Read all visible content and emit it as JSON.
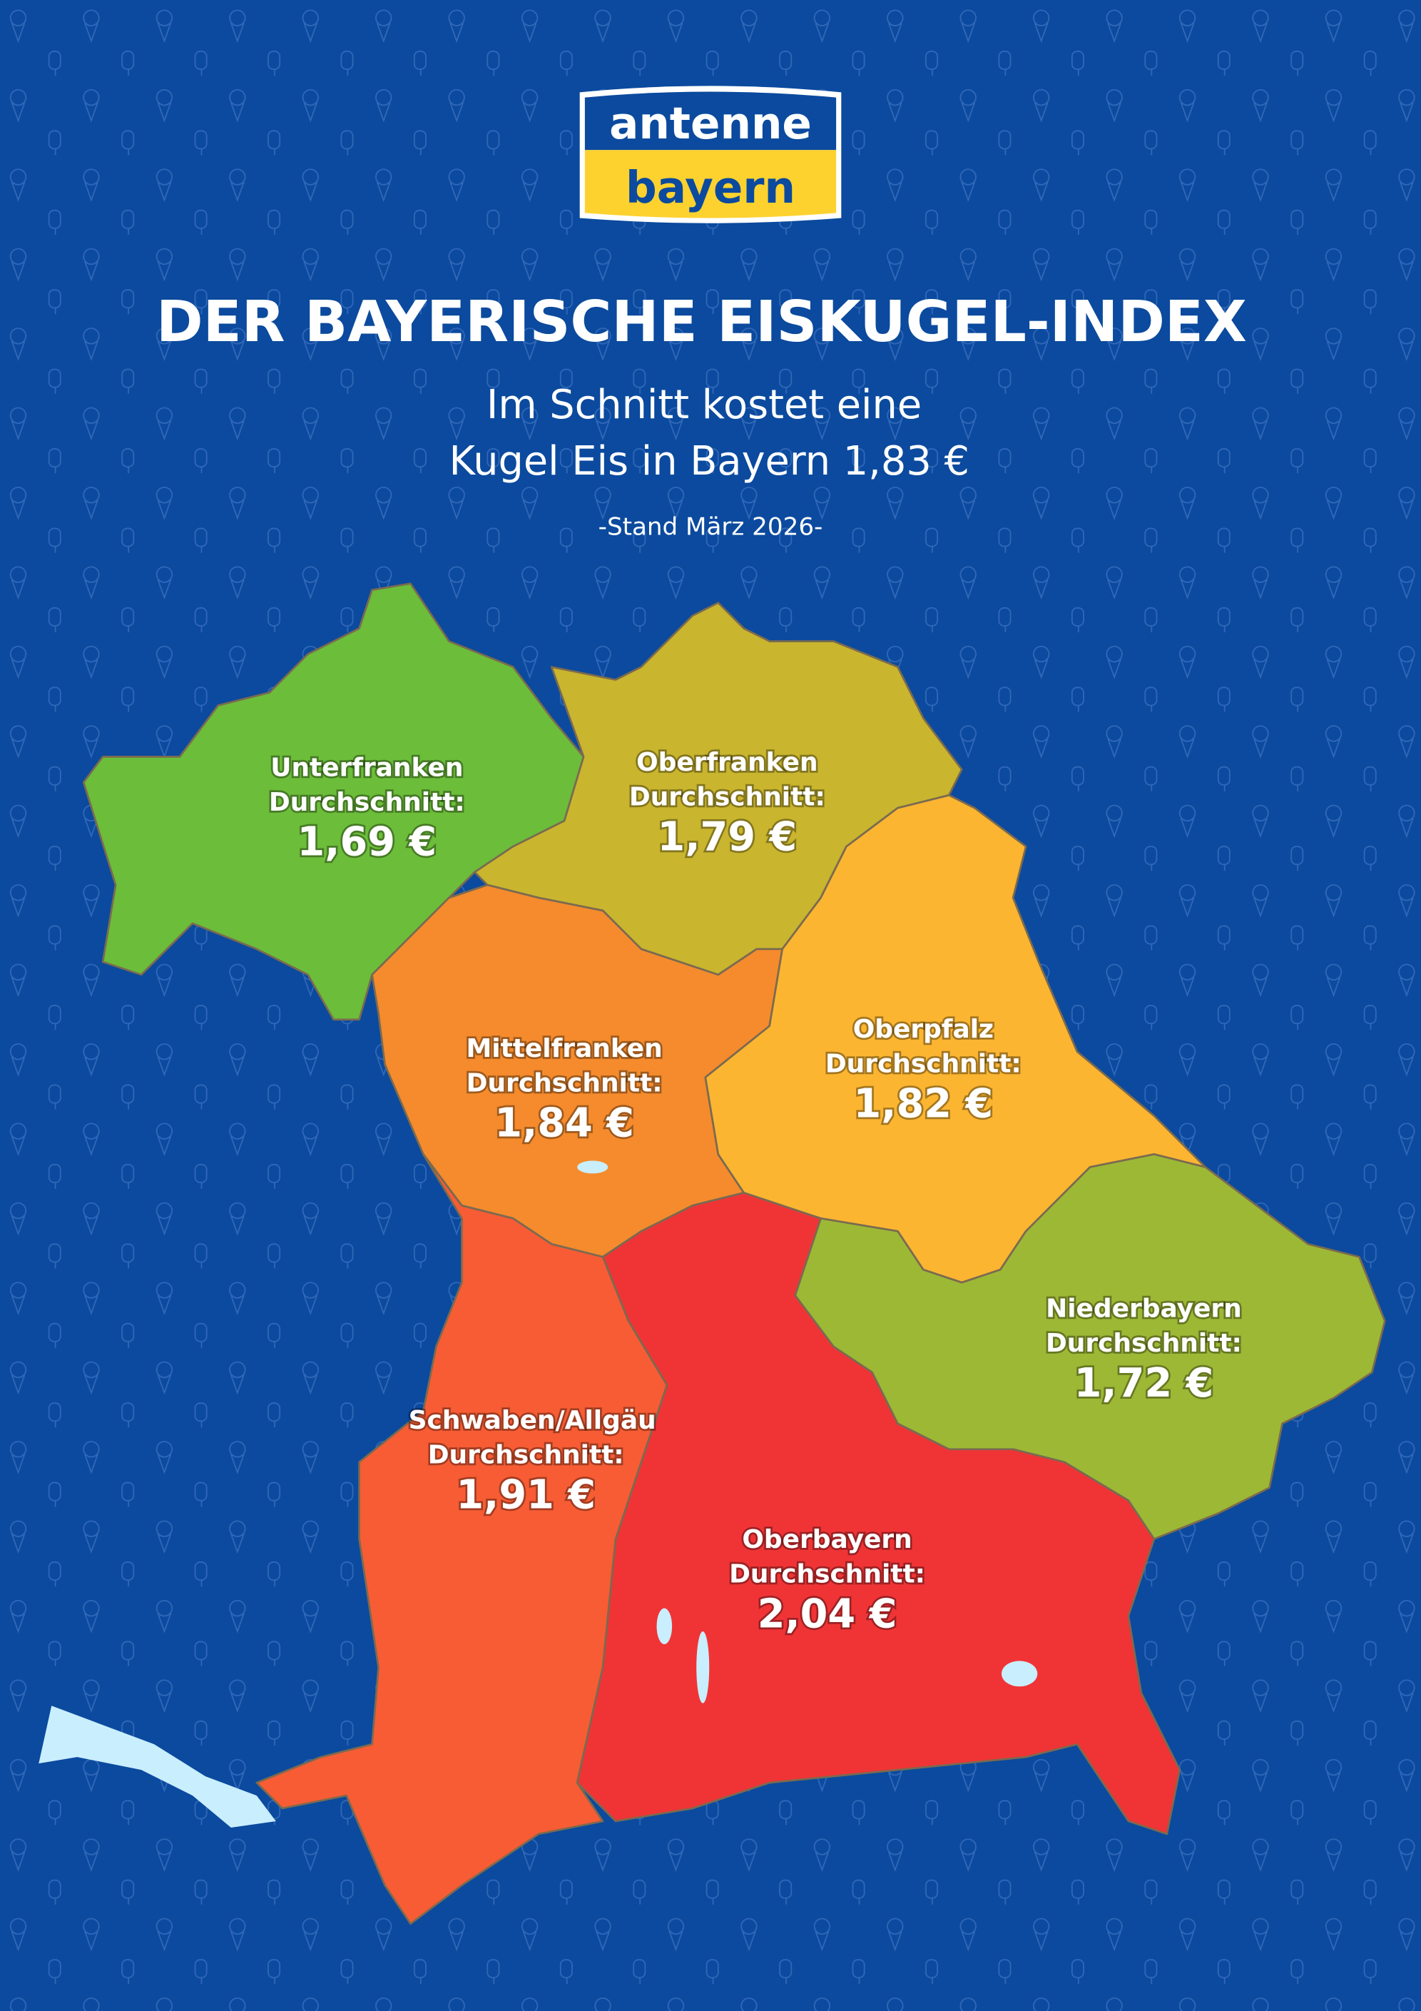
{
  "logo": {
    "line1": "antenne",
    "line2": "bayern"
  },
  "header": {
    "title": "DER BAYERISCHE EISKUGEL-INDEX",
    "subtitle_line1": "Im Schnitt kostet eine",
    "subtitle_line2": "Kugel Eis in Bayern 1,83 €",
    "date": "-Stand März 2026-"
  },
  "colors": {
    "background": "#0b4a9e",
    "lake": "#c9eefd"
  },
  "regions": [
    {
      "name": "Unterfranken",
      "label": "Durchschnitt:",
      "price": "1,69 €",
      "value": 1.69,
      "color": "#6cbd3a"
    },
    {
      "name": "Oberfranken",
      "label": "Durchschnitt:",
      "price": "1,79 €",
      "value": 1.79,
      "color": "#c9b52e"
    },
    {
      "name": "Mittelfranken",
      "label": "Durchschnitt:",
      "price": "1,84 €",
      "value": 1.84,
      "color": "#f58b2d"
    },
    {
      "name": "Oberpfalz",
      "label": "Durchschnitt:",
      "price": "1,82 €",
      "value": 1.82,
      "color": "#fbb531"
    },
    {
      "name": "Niederbayern",
      "label": "Durchschnitt:",
      "price": "1,72 €",
      "value": 1.72,
      "color": "#9db835"
    },
    {
      "name": "Schwaben/Allgäu",
      "label": "Durchschnitt:",
      "price": "1,91 €",
      "value": 1.91,
      "color": "#f75c34"
    },
    {
      "name": "Oberbayern",
      "label": "Durchschnitt:",
      "price": "2,04 €",
      "value": 2.04,
      "color": "#f03436"
    }
  ]
}
